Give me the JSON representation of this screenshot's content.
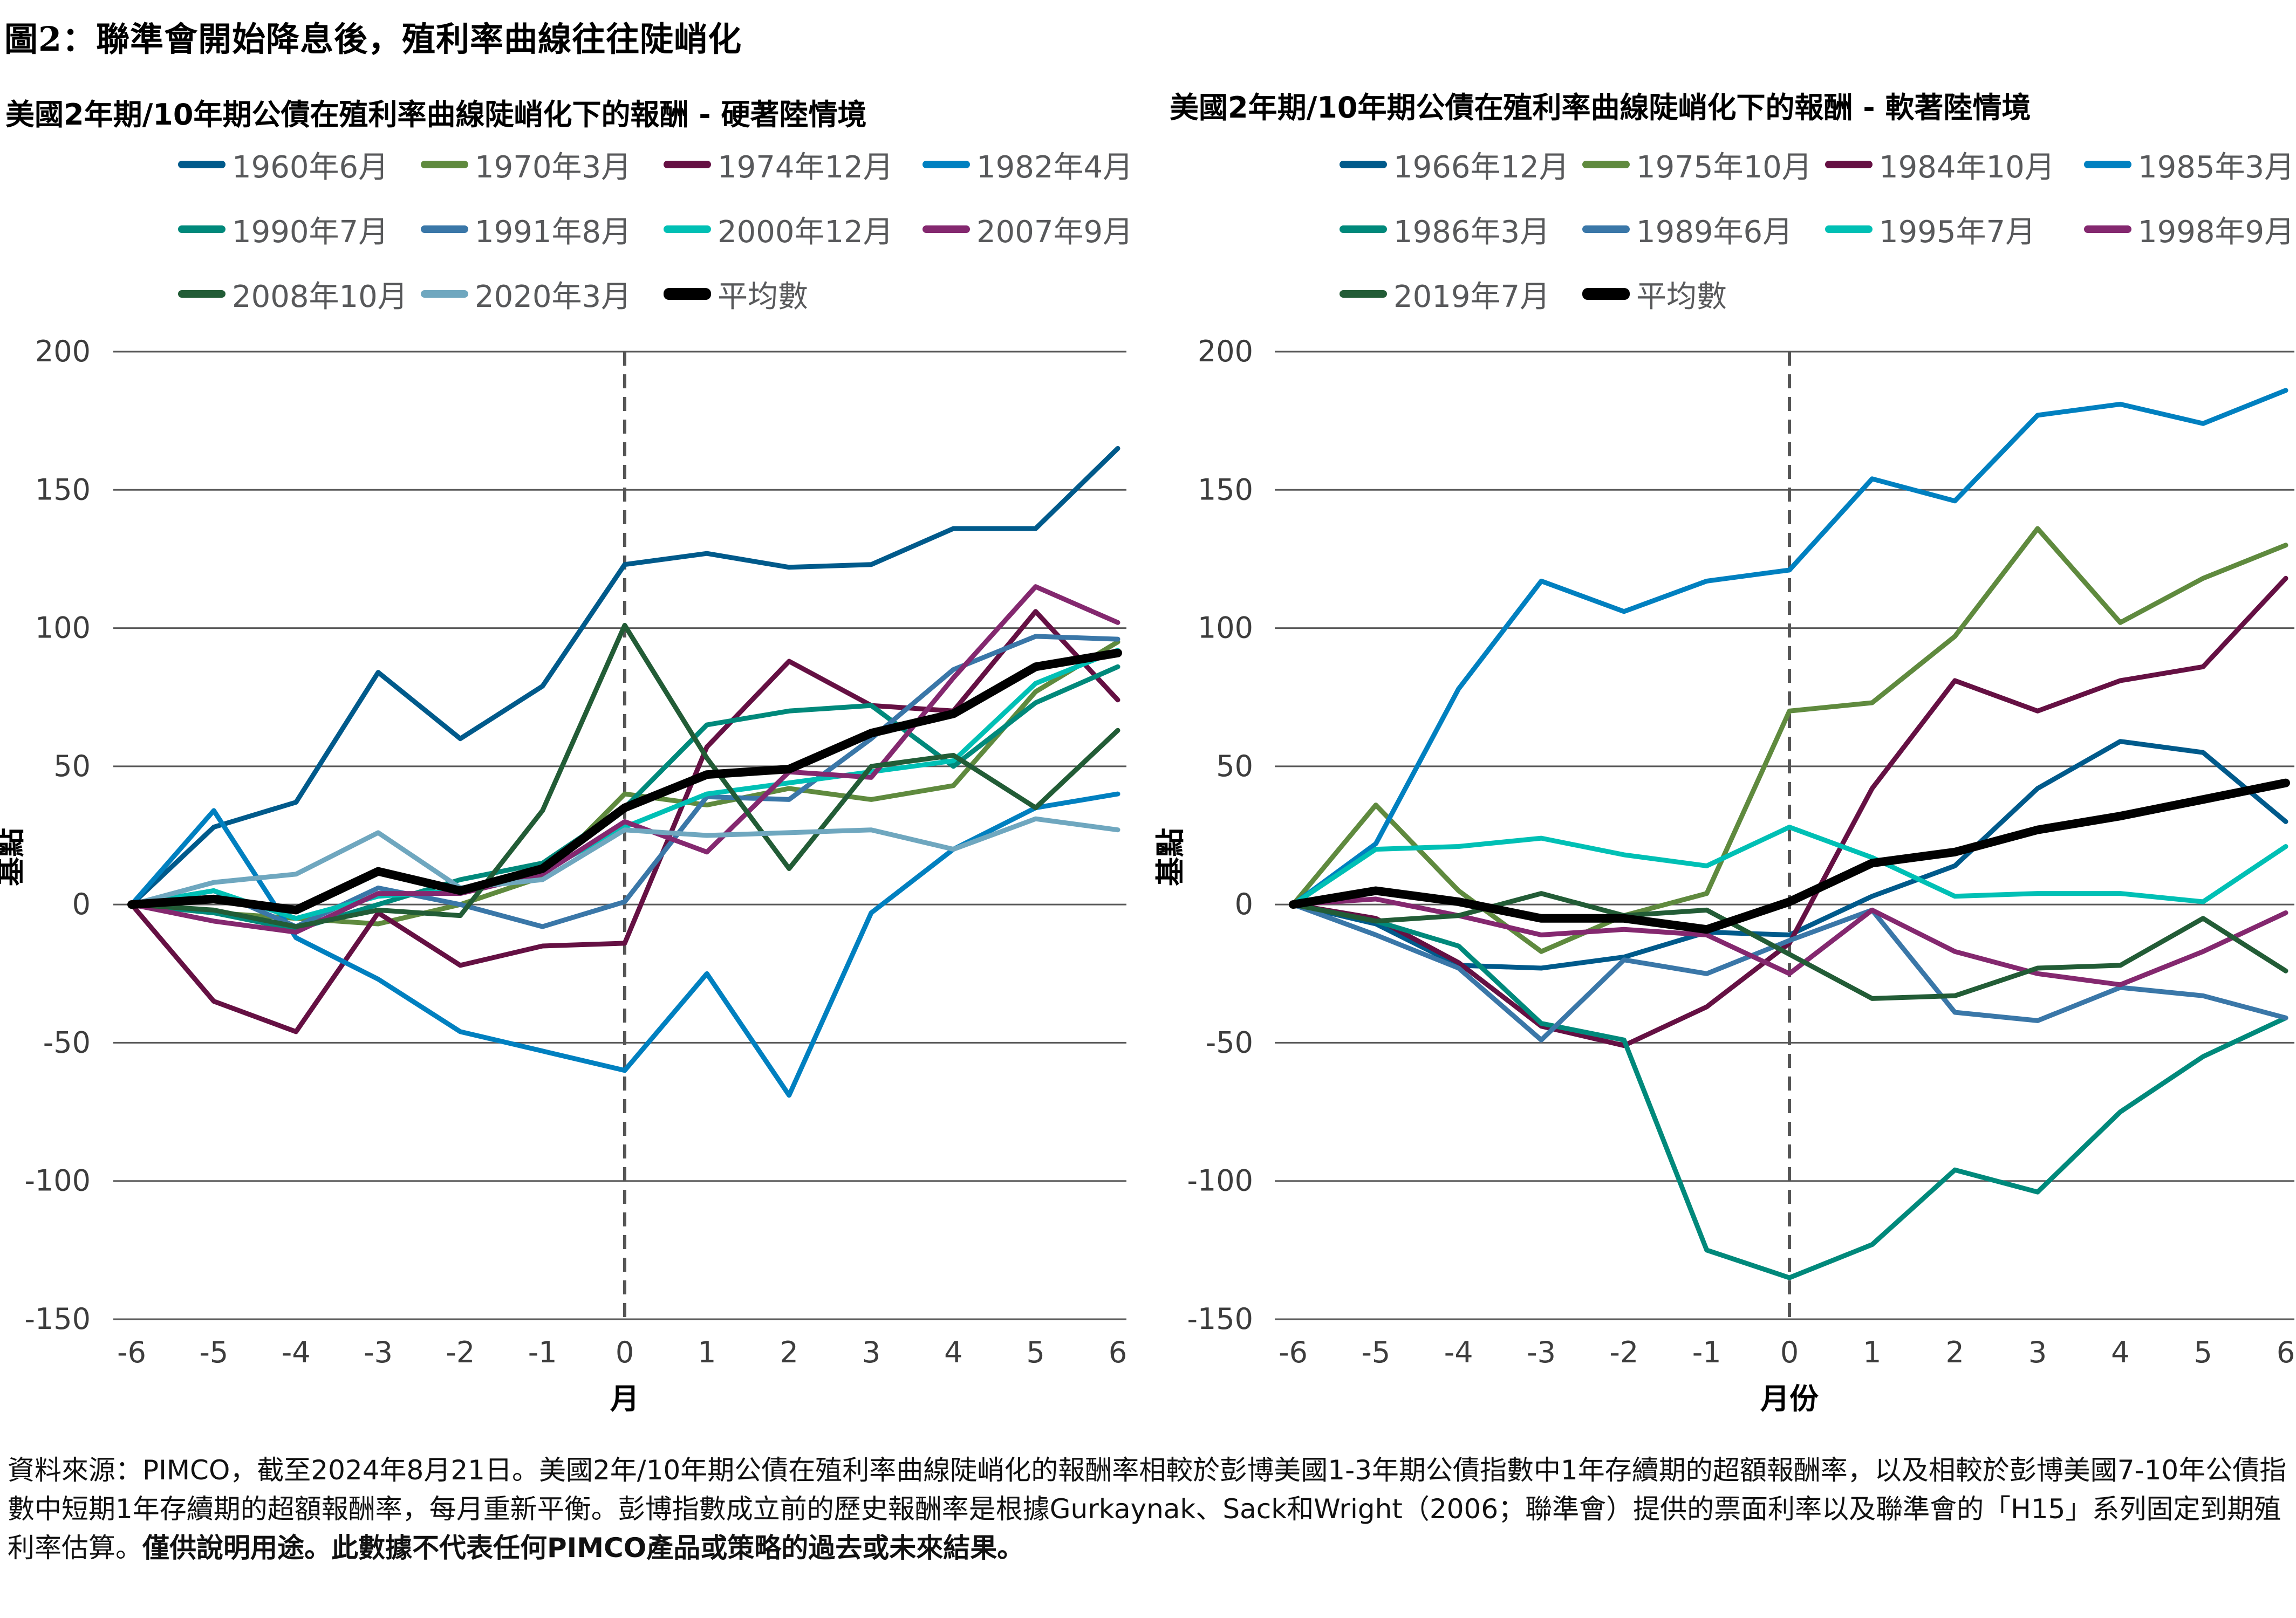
{
  "title": "圖2：聯準會開始降息後，殖利率曲線往往陡峭化",
  "footnote": {
    "text": "資料來源：PIMCO，截至2024年8月21日。美國2年/10年期公債在殖利率曲線陡峭化的報酬率相較於彭博美國1-3年期公債指數中1年存續期的超額報酬率，以及相較於彭博美國7-10年公債指數中短期1年存續期的超額報酬率，每月重新平衡。彭博指數成立前的歷史報酬率是根據Gurkaynak、Sack和Wright（2006；聯準會）提供的票面利率以及聯準會的「H15」系列固定到期殖利率估算。",
    "bold": "僅供說明用途。此數據不代表任何PIMCO產品或策略的過去或未來結果。"
  },
  "chart_data": [
    {
      "type": "line",
      "title": "美國2年期/10年期公債在殖利率曲線陡峭化下的報酬 - 硬著陸情境",
      "xlabel": "月",
      "ylabel": "基點",
      "x": [
        -6,
        -5,
        -4,
        -3,
        -2,
        -1,
        0,
        1,
        2,
        3,
        4,
        5,
        6
      ],
      "xticks": [
        "-6",
        "-5",
        "-4",
        "-3",
        "-2",
        "-1",
        "0",
        "1",
        "2",
        "3",
        "4",
        "5",
        "6"
      ],
      "ylim": [
        -150,
        200
      ],
      "yticks": [
        200,
        150,
        100,
        50,
        0,
        -50,
        -100,
        -150
      ],
      "grid": true,
      "vline_x": 0,
      "legend_position": "top",
      "series": [
        {
          "name": "1960年6月",
          "color": "#005a8b",
          "values": [
            0,
            28,
            37,
            84,
            60,
            79,
            123,
            127,
            122,
            123,
            136,
            136,
            165
          ]
        },
        {
          "name": "1970年3月",
          "color": "#5f8a3e",
          "values": [
            0,
            -3,
            -5,
            -7,
            0,
            10,
            40,
            36,
            42,
            38,
            43,
            77,
            95
          ]
        },
        {
          "name": "1974年12月",
          "color": "#651043",
          "values": [
            0,
            -35,
            -46,
            -3,
            -22,
            -15,
            -14,
            57,
            88,
            72,
            70,
            106,
            74
          ]
        },
        {
          "name": "1982年4月",
          "color": "#0080c0",
          "values": [
            0,
            34,
            -12,
            -27,
            -46,
            -53,
            -60,
            -25,
            -69,
            -3,
            20,
            35,
            40
          ]
        },
        {
          "name": "1990年7月",
          "color": "#00897b",
          "values": [
            0,
            -3,
            -9,
            0,
            9,
            15,
            35,
            65,
            70,
            72,
            50,
            73,
            86
          ]
        },
        {
          "name": "1991年8月",
          "color": "#3a77a8",
          "values": [
            0,
            5,
            -8,
            6,
            0,
            -8,
            1,
            39,
            38,
            60,
            85,
            97,
            96
          ]
        },
        {
          "name": "2000年12月",
          "color": "#00c0b5",
          "values": [
            0,
            5,
            -5,
            3,
            5,
            12,
            28,
            40,
            44,
            48,
            52,
            80,
            92
          ]
        },
        {
          "name": "2007年9月",
          "color": "#84286f",
          "values": [
            0,
            -6,
            -10,
            4,
            4,
            11,
            30,
            19,
            48,
            46,
            82,
            115,
            102
          ]
        },
        {
          "name": "2008年10月",
          "color": "#225c36",
          "values": [
            0,
            -2,
            -8,
            -2,
            -4,
            34,
            101,
            53,
            13,
            50,
            54,
            35,
            63
          ]
        },
        {
          "name": "2020年3月",
          "color": "#6fa7bf",
          "values": [
            0,
            8,
            11,
            26,
            6,
            9,
            27,
            25,
            26,
            27,
            20,
            31,
            27
          ]
        },
        {
          "name": "平均數",
          "color": "#000000",
          "average": true,
          "values": [
            0,
            2,
            -2,
            12,
            5,
            13,
            35,
            47,
            49,
            62,
            69,
            86,
            91
          ]
        }
      ]
    },
    {
      "type": "line",
      "title": "美國2年期/10年期公債在殖利率曲線陡峭化下的報酬 - 軟著陸情境",
      "xlabel": "月份",
      "ylabel": "基點",
      "x": [
        -6,
        -5,
        -4,
        -3,
        -2,
        -1,
        0,
        1,
        2,
        3,
        4,
        5,
        6
      ],
      "xticks": [
        "-6",
        "-5",
        "-4",
        "-3",
        "-2",
        "-1",
        "0",
        "1",
        "2",
        "3",
        "4",
        "5",
        "6"
      ],
      "ylim": [
        -150,
        200
      ],
      "yticks": [
        200,
        150,
        100,
        50,
        0,
        -50,
        -100,
        -150
      ],
      "grid": true,
      "vline_x": 0,
      "legend_position": "top",
      "series": [
        {
          "name": "1966年12月",
          "color": "#005a8b",
          "values": [
            0,
            -7,
            -22,
            -23,
            -19,
            -10,
            -11,
            3,
            14,
            42,
            59,
            55,
            30
          ]
        },
        {
          "name": "1975年10月",
          "color": "#5f8a3e",
          "values": [
            0,
            36,
            5,
            -17,
            -4,
            4,
            70,
            73,
            97,
            136,
            102,
            118,
            130
          ]
        },
        {
          "name": "1984年10月",
          "color": "#651043",
          "values": [
            0,
            -5,
            -21,
            -44,
            -51,
            -37,
            -14,
            42,
            81,
            70,
            81,
            86,
            118
          ]
        },
        {
          "name": "1985年3月",
          "color": "#0080c0",
          "values": [
            0,
            22,
            78,
            117,
            106,
            117,
            121,
            154,
            146,
            177,
            181,
            174,
            186
          ]
        },
        {
          "name": "1986年3月",
          "color": "#00897b",
          "values": [
            0,
            -6,
            -15,
            -43,
            -49,
            -125,
            -135,
            -123,
            -96,
            -104,
            -75,
            -55,
            -41
          ]
        },
        {
          "name": "1989年6月",
          "color": "#3a77a8",
          "values": [
            0,
            -11,
            -23,
            -49,
            -20,
            -25,
            -13,
            -2,
            -39,
            -42,
            -30,
            -33,
            -41
          ]
        },
        {
          "name": "1995年7月",
          "color": "#00c0b5",
          "values": [
            0,
            20,
            21,
            24,
            18,
            14,
            28,
            17,
            3,
            4,
            4,
            1,
            21
          ]
        },
        {
          "name": "1998年9月",
          "color": "#84286f",
          "values": [
            0,
            2,
            -4,
            -11,
            -9,
            -11,
            -25,
            -2,
            -17,
            -25,
            -29,
            -17,
            -3
          ]
        },
        {
          "name": "2019年7月",
          "color": "#225c36",
          "values": [
            0,
            -6,
            -4,
            4,
            -4,
            -2,
            -18,
            -34,
            -33,
            -23,
            -22,
            -5,
            -24
          ]
        },
        {
          "name": "平均數",
          "color": "#000000",
          "average": true,
          "values": [
            0,
            5,
            1,
            -5,
            -5,
            -9,
            1,
            15,
            19,
            27,
            32,
            38,
            44
          ]
        }
      ]
    }
  ]
}
